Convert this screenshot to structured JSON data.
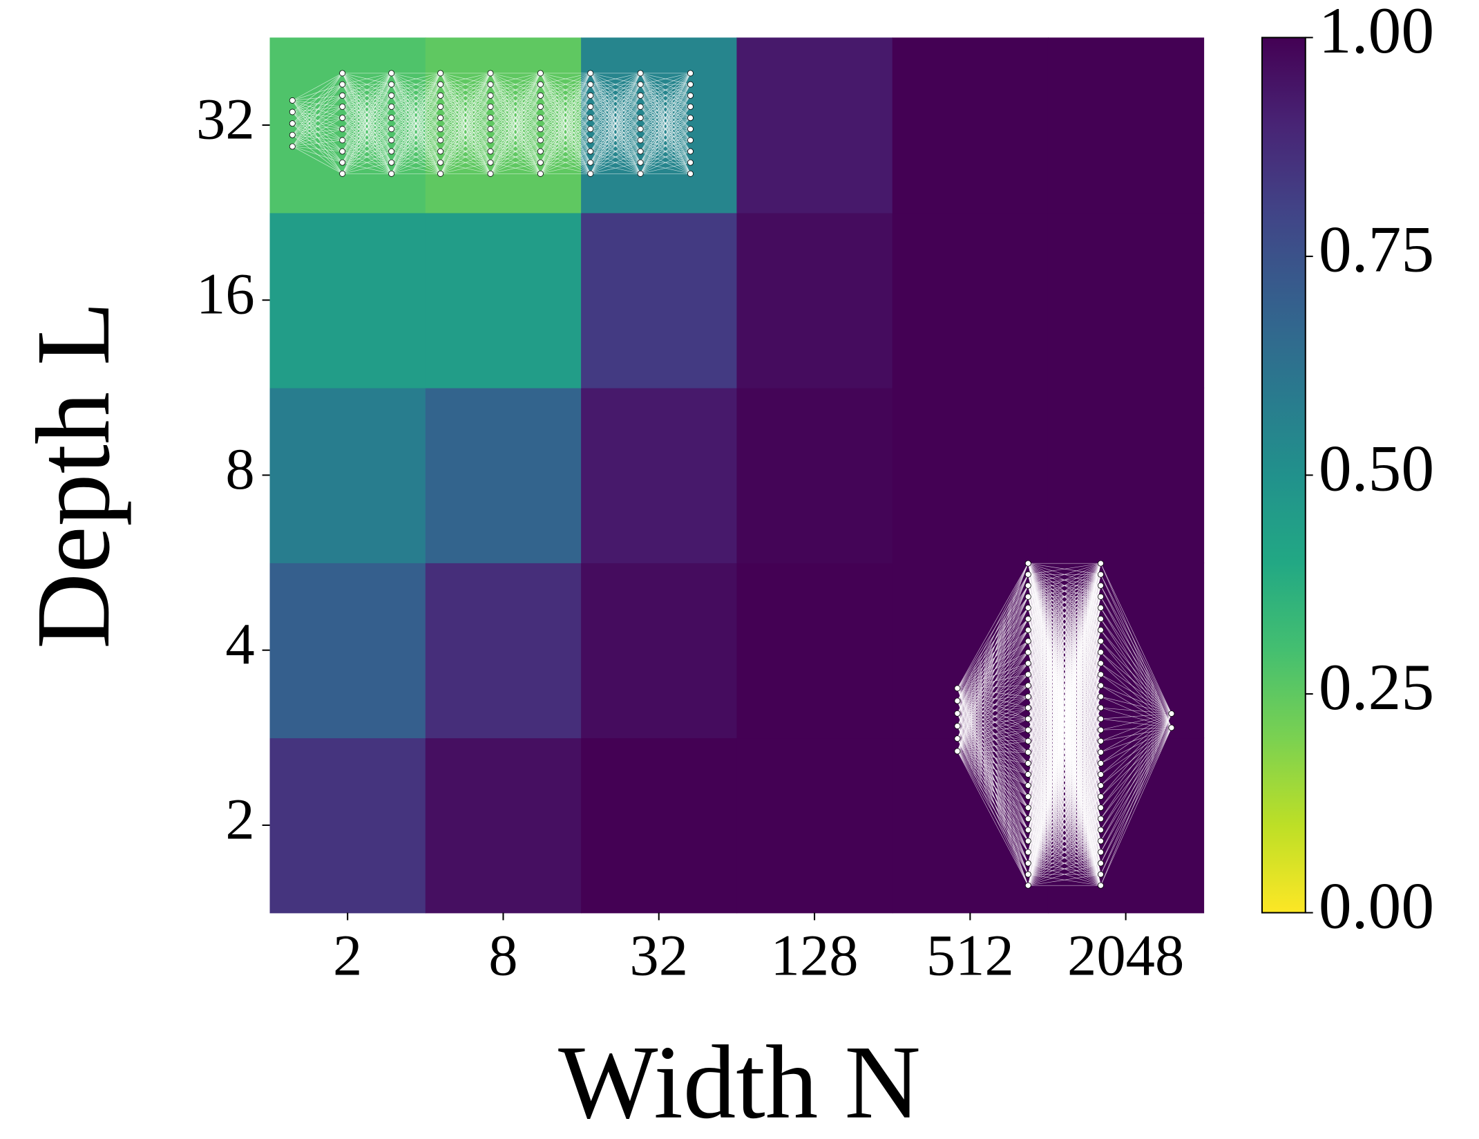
{
  "chart_data": {
    "type": "heatmap",
    "xlabel": "Width N",
    "ylabel": "Depth L",
    "xcategories": [
      "2",
      "8",
      "32",
      "128",
      "512",
      "2048"
    ],
    "ycategories": [
      "2",
      "4",
      "8",
      "16",
      "32"
    ],
    "values": [
      [
        0.85,
        0.96,
        1.0,
        1.0,
        1.0,
        1.0
      ],
      [
        0.7,
        0.87,
        0.97,
        1.0,
        1.0,
        1.0
      ],
      [
        0.58,
        0.68,
        0.93,
        0.99,
        1.0,
        1.0
      ],
      [
        0.45,
        0.45,
        0.83,
        0.97,
        1.0,
        1.0
      ],
      [
        0.28,
        0.25,
        0.55,
        0.93,
        1.0,
        1.0
      ]
    ],
    "colormap": "viridis_r",
    "clim": [
      0,
      1
    ],
    "cticks": [
      {
        "value": 0,
        "label": "0.00"
      },
      {
        "value": 0.25,
        "label": "0.25"
      },
      {
        "value": 0.5,
        "label": "0.50"
      },
      {
        "value": 0.75,
        "label": "0.75"
      },
      {
        "value": 1,
        "label": "1.00"
      }
    ]
  }
}
